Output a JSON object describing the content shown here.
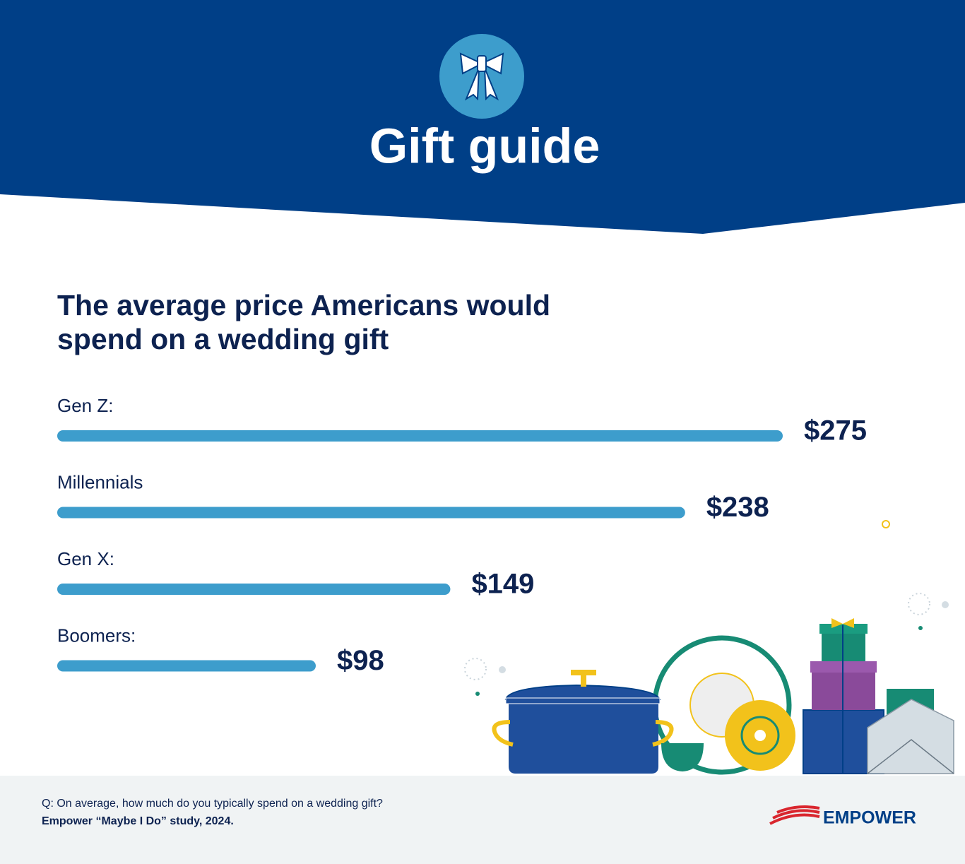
{
  "header": {
    "title": "Gift guide"
  },
  "chart_data": {
    "type": "hbar",
    "title": "The average price Americans would spend on a wedding gift",
    "categories": [
      "Gen Z:",
      "Millennials",
      "Gen X:",
      "Boomers:"
    ],
    "values": [
      275,
      238,
      149,
      98
    ],
    "value_labels": [
      "$275",
      "$238",
      "$149",
      "$98"
    ],
    "color": "#3d9dcc"
  },
  "footer": {
    "question": "Q: On average, how much do you typically spend on a wedding gift?",
    "source": "Empower “Maybe I Do” study, 2024.",
    "brand": "EMPOWER"
  }
}
